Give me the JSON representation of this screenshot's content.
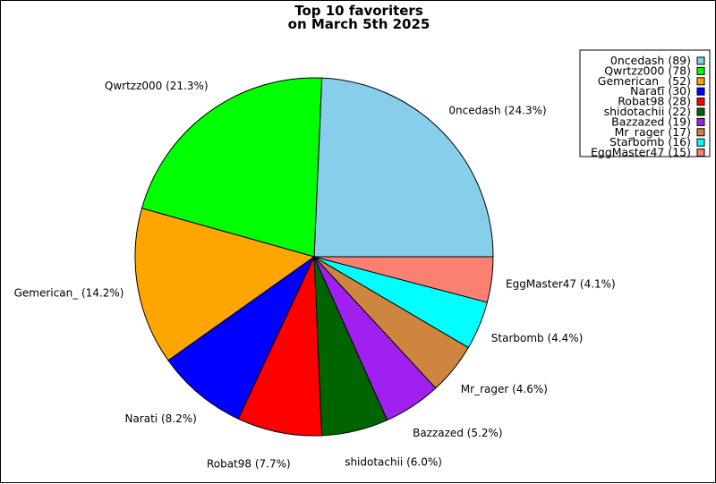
{
  "chart_data": {
    "type": "pie",
    "title": "Top 10 favoriters",
    "subtitle": "on March 5th 2025",
    "legend_position": "top-right",
    "slices": [
      {
        "label": "0ncedash",
        "value": 89,
        "percent_label": "0ncedash (24.3%)",
        "legend_label": "0ncedash (89)",
        "color": "#87ceeb"
      },
      {
        "label": "Qwrtzz000",
        "value": 78,
        "percent_label": "Qwrtzz000 (21.3%)",
        "legend_label": "Qwrtzz000 (78)",
        "color": "#00ff00"
      },
      {
        "label": "Gemerican_",
        "value": 52,
        "percent_label": "Gemerican_ (14.2%)",
        "legend_label": "Gemerican_ (52)",
        "color": "#ffa500"
      },
      {
        "label": "Narati",
        "value": 30,
        "percent_label": "Narati (8.2%)",
        "legend_label": "Narati (30)",
        "color": "#0000ff"
      },
      {
        "label": "Robat98",
        "value": 28,
        "percent_label": "Robat98 (7.7%)",
        "legend_label": "Robat98 (28)",
        "color": "#ff0000"
      },
      {
        "label": "shidotachii",
        "value": 22,
        "percent_label": "shidotachii (6.0%)",
        "legend_label": "shidotachii (22)",
        "color": "#006400"
      },
      {
        "label": "Bazzazed",
        "value": 19,
        "percent_label": "Bazzazed (5.2%)",
        "legend_label": "Bazzazed (19)",
        "color": "#a020f0"
      },
      {
        "label": "Mr_rager",
        "value": 17,
        "percent_label": "Mr_rager (4.6%)",
        "legend_label": "Mr_rager (17)",
        "color": "#cd853f"
      },
      {
        "label": "Starbomb",
        "value": 16,
        "percent_label": "Starbomb (4.4%)",
        "legend_label": "Starbomb (16)",
        "color": "#00ffff"
      },
      {
        "label": "EggMaster47",
        "value": 15,
        "percent_label": "EggMaster47 (4.1%)",
        "legend_label": "EggMaster47 (15)",
        "color": "#fa8072"
      }
    ]
  }
}
